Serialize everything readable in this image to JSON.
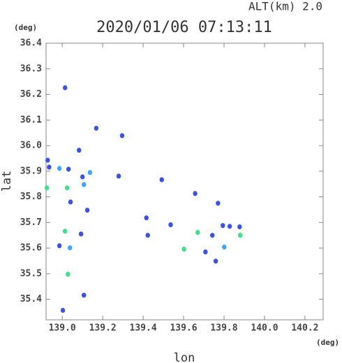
{
  "chart_data": {
    "type": "scatter",
    "title": "2020/01/06 07:13:11",
    "subtitle": "ALT(km) 2.0",
    "x_label": "lon",
    "y_label": "lat",
    "x_unit": "(deg)",
    "y_unit": "(deg)",
    "xlim": [
      138.92,
      140.29
    ],
    "ylim": [
      35.32,
      36.4
    ],
    "xticks": [
      {
        "value": 139.0,
        "label": "139.0"
      },
      139.2,
      139.4,
      139.6,
      139.8,
      {
        "value": 140.0,
        "label": "140.0"
      },
      140.2
    ],
    "yticks": [
      35.4,
      35.5,
      35.6,
      35.7,
      35.8,
      35.9,
      {
        "value": 36.0,
        "label": "36.0"
      },
      36.1,
      36.2,
      36.3,
      36.4
    ],
    "series": [
      {
        "color": "#3a52e8",
        "x": [
          139.014,
          139.083,
          138.928,
          138.935,
          139.031,
          139.1,
          139.041,
          139.124,
          139.093,
          138.986,
          139.107,
          139.003,
          139.168,
          139.296,
          139.279,
          139.492,
          139.416,
          139.423,
          139.536,
          139.657,
          139.708,
          139.742,
          139.759,
          139.77,
          139.794,
          139.828,
          139.877
        ],
        "values": [
          36.226,
          35.982,
          35.943,
          35.916,
          35.908,
          35.878,
          35.78,
          35.748,
          35.655,
          35.609,
          35.416,
          35.357,
          36.068,
          36.039,
          35.881,
          35.867,
          35.718,
          35.65,
          35.691,
          35.813,
          35.585,
          35.65,
          35.549,
          35.775,
          35.688,
          35.685,
          35.683
        ]
      },
      {
        "color": "#3fa6ff",
        "x": [
          138.986,
          139.137,
          139.107,
          139.038,
          139.801
        ],
        "values": [
          35.911,
          35.895,
          35.848,
          35.601,
          35.604
        ]
      },
      {
        "color": "#3ee08a",
        "x": [
          139.024,
          139.014,
          139.028,
          139.602,
          139.67,
          139.88,
          138.924
        ],
        "values": [
          35.835,
          35.666,
          35.498,
          35.596,
          35.661,
          35.65,
          35.835
        ]
      }
    ]
  }
}
